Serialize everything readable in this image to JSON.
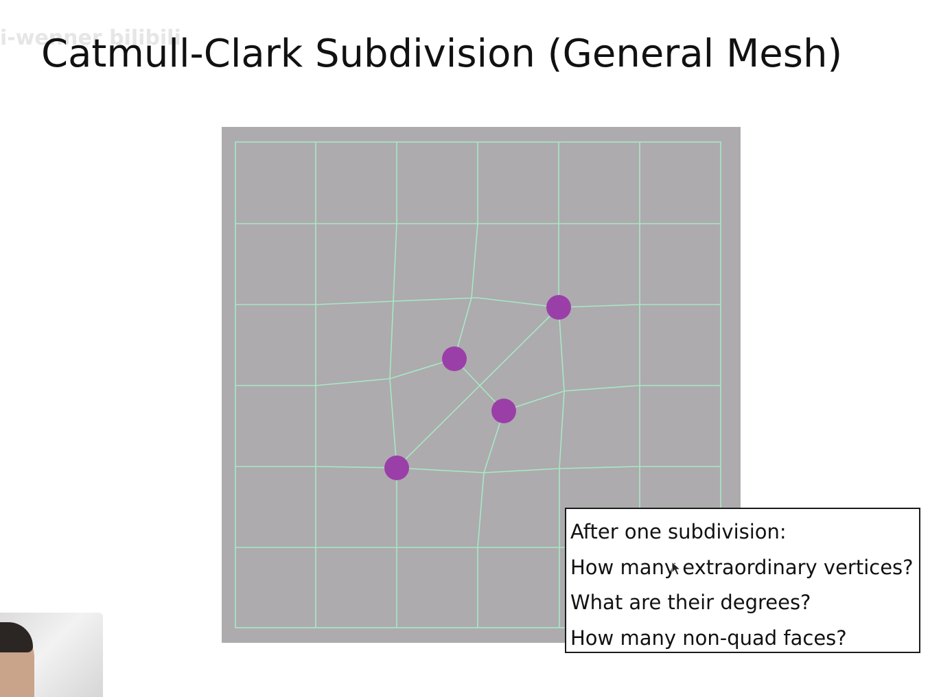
{
  "slide": {
    "title": "Catmull-Clark Subdivision (General Mesh)"
  },
  "watermark": {
    "text": "i-wenner bilibili"
  },
  "diagram": {
    "background_color": "#adabae",
    "edge_color": "#a8e8c4",
    "vertex_color": "#9b3fa8",
    "extraordinary_vertices": 4
  },
  "question_box": {
    "lines": [
      "After one subdivision:",
      "How many extraordinary vertices?",
      "What are their degrees?",
      "How many non-quad faces?"
    ]
  }
}
